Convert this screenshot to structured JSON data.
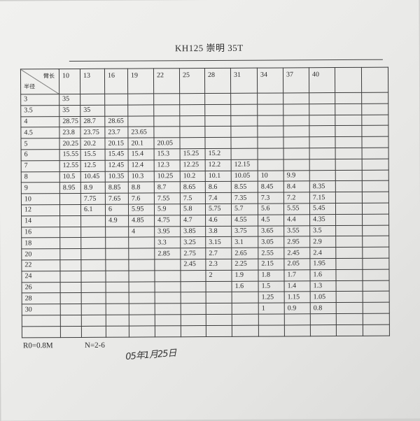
{
  "title": "KH125  崇明 35T",
  "table": {
    "corner_top": "臂长",
    "corner_bottom": "半径",
    "columns": [
      "10",
      "13",
      "16",
      "19",
      "22",
      "25",
      "28",
      "31",
      "34",
      "37",
      "40",
      "",
      ""
    ],
    "rows": [
      {
        "radius": "3",
        "values": [
          "35",
          "",
          "",
          "",
          "",
          "",
          "",
          "",
          "",
          "",
          "",
          "",
          ""
        ]
      },
      {
        "radius": "3.5",
        "values": [
          "35",
          "35",
          "",
          "",
          "",
          "",
          "",
          "",
          "",
          "",
          "",
          "",
          ""
        ]
      },
      {
        "radius": "4",
        "values": [
          "28.75",
          "28.7",
          "28.65",
          "",
          "",
          "",
          "",
          "",
          "",
          "",
          "",
          "",
          ""
        ]
      },
      {
        "radius": "4.5",
        "values": [
          "23.8",
          "23.75",
          "23.7",
          "23.65",
          "",
          "",
          "",
          "",
          "",
          "",
          "",
          "",
          ""
        ]
      },
      {
        "radius": "5",
        "values": [
          "20.25",
          "20.2",
          "20.15",
          "20.1",
          "20.05",
          "",
          "",
          "",
          "",
          "",
          "",
          "",
          ""
        ]
      },
      {
        "radius": "6",
        "values": [
          "15.55",
          "15.5",
          "15.45",
          "15.4",
          "15.3",
          "15.25",
          "15.2",
          "",
          "",
          "",
          "",
          "",
          ""
        ]
      },
      {
        "radius": "7",
        "values": [
          "12.55",
          "12.5",
          "12.45",
          "12.4",
          "12.3",
          "12.25",
          "12.2",
          "12.15",
          "",
          "",
          "",
          "",
          ""
        ]
      },
      {
        "radius": "8",
        "values": [
          "10.5",
          "10.45",
          "10.35",
          "10.3",
          "10.25",
          "10.2",
          "10.1",
          "10.05",
          "10",
          "9.9",
          "",
          "",
          ""
        ]
      },
      {
        "radius": "9",
        "values": [
          "8.95",
          "8.9",
          "8.85",
          "8.8",
          "8.7",
          "8.65",
          "8.6",
          "8.55",
          "8.45",
          "8.4",
          "8.35",
          "",
          ""
        ]
      },
      {
        "radius": "10",
        "values": [
          "",
          "7.75",
          "7.65",
          "7.6",
          "7.55",
          "7.5",
          "7.4",
          "7.35",
          "7.3",
          "7.2",
          "7.15",
          "",
          ""
        ]
      },
      {
        "radius": "12",
        "values": [
          "",
          "6.1",
          "6",
          "5.95",
          "5.9",
          "5.8",
          "5.75",
          "5.7",
          "5.6",
          "5.55",
          "5.45",
          "",
          ""
        ]
      },
      {
        "radius": "14",
        "values": [
          "",
          "",
          "4.9",
          "4.85",
          "4.75",
          "4.7",
          "4.6",
          "4.55",
          "4.5",
          "4.4",
          "4.35",
          "",
          ""
        ]
      },
      {
        "radius": "16",
        "values": [
          "",
          "",
          "",
          "4",
          "3.95",
          "3.85",
          "3.8",
          "3.75",
          "3.65",
          "3.55",
          "3.5",
          "",
          ""
        ]
      },
      {
        "radius": "18",
        "values": [
          "",
          "",
          "",
          "",
          "3.3",
          "3.25",
          "3.15",
          "3.1",
          "3.05",
          "2.95",
          "2.9",
          "",
          ""
        ]
      },
      {
        "radius": "20",
        "values": [
          "",
          "",
          "",
          "",
          "2.85",
          "2.75",
          "2.7",
          "2.65",
          "2.55",
          "2.45",
          "2.4",
          "",
          ""
        ]
      },
      {
        "radius": "22",
        "values": [
          "",
          "",
          "",
          "",
          "",
          "2.45",
          "2.3",
          "2.25",
          "2.15",
          "2.05",
          "1.95",
          "",
          ""
        ]
      },
      {
        "radius": "24",
        "values": [
          "",
          "",
          "",
          "",
          "",
          "",
          "2",
          "1.9",
          "1.8",
          "1.7",
          "1.6",
          "",
          ""
        ]
      },
      {
        "radius": "26",
        "values": [
          "",
          "",
          "",
          "",
          "",
          "",
          "",
          "1.6",
          "1.5",
          "1.4",
          "1.3",
          "",
          ""
        ]
      },
      {
        "radius": "28",
        "values": [
          "",
          "",
          "",
          "",
          "",
          "",
          "",
          "",
          "1.25",
          "1.15",
          "1.05",
          "",
          ""
        ]
      },
      {
        "radius": "30",
        "values": [
          "",
          "",
          "",
          "",
          "",
          "",
          "",
          "",
          "1",
          "0.9",
          "0.8",
          "",
          ""
        ]
      },
      {
        "radius": "",
        "values": [
          "",
          "",
          "",
          "",
          "",
          "",
          "",
          "",
          "",
          "",
          "",
          "",
          ""
        ]
      },
      {
        "radius": "",
        "values": [
          "",
          "",
          "",
          "",
          "",
          "",
          "",
          "",
          "",
          "",
          "",
          "",
          ""
        ]
      }
    ]
  },
  "footer": {
    "r0": "R0=0.8M",
    "n": "N=2-6",
    "handwritten_date": "05年1月25日"
  }
}
